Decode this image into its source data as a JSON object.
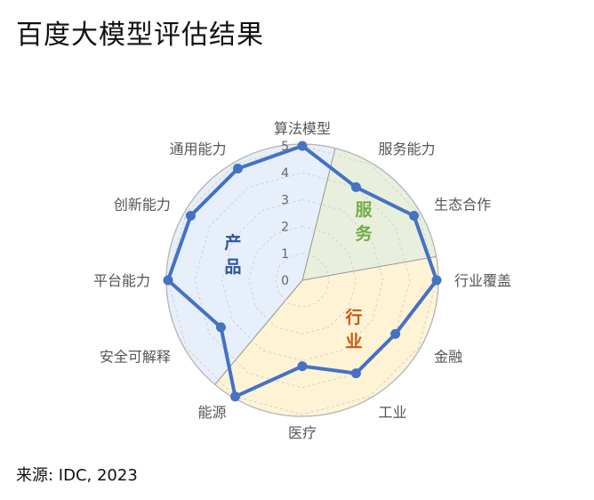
{
  "title": "百度大模型评估结果",
  "source": "来源: IDC, 2023",
  "chart_data": {
    "type": "radar",
    "axes": [
      "算法模型",
      "服务能力",
      "生态合作",
      "行业覆盖",
      "金融",
      "工业",
      "医疗",
      "能源",
      "安全可解释",
      "平台能力",
      "创新能力",
      "通用能力"
    ],
    "values": [
      5,
      4,
      4.8,
      5,
      4,
      4,
      3.2,
      5,
      3.5,
      5,
      4.8,
      4.8
    ],
    "rlim": [
      0,
      5
    ],
    "ticks": [
      "0",
      "1",
      "2",
      "3",
      "4",
      "5"
    ],
    "line_color": "#4472C4",
    "groups": [
      {
        "name": "产品",
        "chars": [
          "产",
          "品"
        ],
        "color": "#2F5597",
        "fill": "#E7EFFA",
        "axes": [
          "算法模型",
          "通用能力",
          "创新能力",
          "平台能力",
          "安全可解释",
          "能源"
        ]
      },
      {
        "name": "服务",
        "chars": [
          "服",
          "务"
        ],
        "color": "#70AD47",
        "fill": "#E8F0DD",
        "axes": [
          "服务能力",
          "生态合作"
        ]
      },
      {
        "name": "行业",
        "chars": [
          "行",
          "业"
        ],
        "color": "#C55A11",
        "fill": "#FFF3D6",
        "axes": [
          "行业覆盖",
          "金融",
          "工业",
          "医疗",
          "能源"
        ]
      }
    ]
  }
}
